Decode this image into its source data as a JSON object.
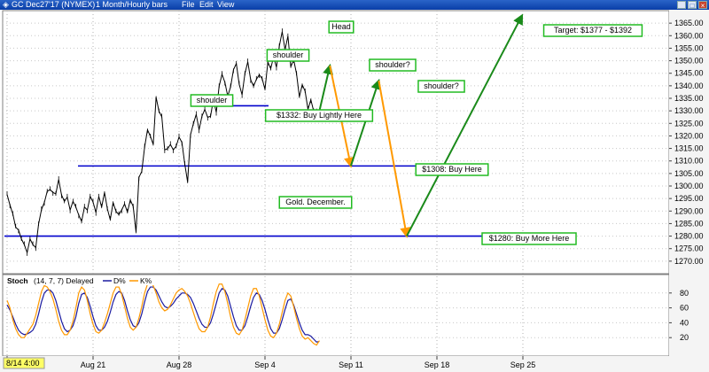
{
  "window": {
    "title": "GC Dec27'17 (NYMEX)",
    "interval": "1 Month/Hourly bars",
    "menu": [
      "File",
      "Edit",
      "View"
    ]
  },
  "chart_data": [
    {
      "type": "line",
      "name": "price",
      "x_ticks": [
        "8/14 4:00",
        "Aug 21",
        "Aug 28",
        "Sep 4",
        "Sep 11",
        "Sep 18",
        "Sep 25"
      ],
      "ylim": [
        1265,
        1370
      ],
      "y_ticks": [
        1270,
        1275,
        1280,
        1285,
        1290,
        1295,
        1300,
        1305,
        1310,
        1315,
        1320,
        1325,
        1330,
        1335,
        1340,
        1345,
        1350,
        1355,
        1360,
        1365
      ],
      "bars_per_week": 120,
      "series": [
        {
          "values": [
            1297,
            1292,
            1289,
            1284,
            1282,
            1279,
            1277,
            1273,
            1279,
            1277,
            1275,
            1285,
            1291,
            1293,
            1298,
            1299,
            1297,
            1297,
            1303,
            1296,
            1294,
            1296,
            1290,
            1294,
            1292,
            1288,
            1286,
            1292,
            1290,
            1296,
            1294,
            1289,
            1296,
            1292,
            1297,
            1291,
            1287,
            1293,
            1290,
            1289,
            1290,
            1293,
            1290,
            1294,
            1292,
            1282,
            1303,
            1306,
            1316,
            1322,
            1320,
            1317,
            1335,
            1330,
            1328,
            1314,
            1315,
            1317,
            1314,
            1316,
            1320,
            1317,
            1309,
            1302,
            1320,
            1325,
            1329,
            1322,
            1328,
            1331,
            1327,
            1328,
            1335,
            1329,
            1340,
            1345,
            1341,
            1336,
            1340,
            1346,
            1349,
            1341,
            1336,
            1345,
            1350,
            1342,
            1340,
            1343,
            1344,
            1343,
            1339,
            1349,
            1347,
            1352,
            1347,
            1356,
            1362,
            1354,
            1360,
            1348,
            1350,
            1345,
            1336,
            1340,
            1338,
            1331,
            1334,
            1330,
            1330,
            1330
          ]
        }
      ],
      "levels": [
        {
          "value": 1332,
          "label": "$1332: Buy Lightly Here"
        },
        {
          "value": 1308,
          "label": "$1308: Buy Here"
        },
        {
          "value": 1280,
          "label": "$1280: Buy More Here"
        }
      ],
      "annotations": [
        {
          "label": "Head"
        },
        {
          "label": "shoulder"
        },
        {
          "label": "shoulder"
        },
        {
          "label": "shoulder?"
        },
        {
          "label": "shoulder?"
        },
        {
          "label": "Gold. December."
        },
        {
          "label": "Target: $1377 - $1392"
        }
      ],
      "projection": {
        "up_color": "#1a8a1a",
        "down_color": "#ff9900",
        "points": [
          {
            "dx": 0,
            "y": 1330
          },
          {
            "dx": 6,
            "y": 1348
          },
          {
            "dx": 18,
            "y": 1308
          },
          {
            "dx": 34,
            "y": 1342
          },
          {
            "dx": 50,
            "y": 1280
          },
          {
            "dx": 116,
            "y": 1368
          }
        ]
      },
      "colors": {
        "price": "#000000",
        "level": "#0000cc",
        "annotation_border": "#22bb22"
      }
    },
    {
      "type": "line",
      "name": "stochastic",
      "title": "Stoch",
      "params": "(14, 7, 7) Delayed",
      "legend": [
        "D%",
        "K%"
      ],
      "ylim": [
        0,
        100
      ],
      "y_ticks": [
        20,
        40,
        60,
        80
      ],
      "series": [
        {
          "name": "D%",
          "color": "#1a1aa0",
          "values": [
            64,
            57,
            48,
            38,
            30,
            26,
            24,
            25,
            27,
            30,
            38,
            52,
            68,
            80,
            84,
            84,
            80,
            70,
            56,
            42,
            32,
            28,
            30,
            36,
            48,
            66,
            78,
            80,
            74,
            62,
            48,
            36,
            30,
            30,
            34,
            42,
            54,
            68,
            78,
            82,
            80,
            70,
            56,
            44,
            36,
            34,
            40,
            52,
            68,
            82,
            88,
            88,
            84,
            76,
            68,
            62,
            60,
            62,
            66,
            72,
            76,
            80,
            80,
            78,
            74,
            66,
            56,
            46,
            38,
            34,
            34,
            40,
            52,
            66,
            80,
            86,
            84,
            76,
            62,
            48,
            36,
            30,
            30,
            36,
            48,
            62,
            74,
            80,
            78,
            70,
            58,
            44,
            32,
            26,
            26,
            32,
            44,
            58,
            70,
            72,
            64,
            52,
            40,
            30,
            24,
            24,
            22,
            18,
            14,
            15
          ]
        },
        {
          "name": "K%",
          "color": "#ff9900",
          "values": [
            70,
            60,
            44,
            32,
            24,
            20,
            20,
            26,
            32,
            38,
            50,
            66,
            82,
            90,
            88,
            82,
            72,
            58,
            42,
            30,
            24,
            24,
            30,
            42,
            60,
            80,
            88,
            84,
            70,
            52,
            38,
            28,
            26,
            30,
            40,
            52,
            66,
            80,
            88,
            88,
            78,
            62,
            46,
            34,
            30,
            34,
            46,
            62,
            80,
            92,
            94,
            90,
            80,
            68,
            60,
            56,
            58,
            64,
            72,
            80,
            84,
            86,
            82,
            76,
            66,
            54,
            42,
            32,
            28,
            28,
            34,
            48,
            66,
            82,
            92,
            92,
            82,
            66,
            48,
            34,
            26,
            24,
            30,
            44,
            60,
            76,
            86,
            86,
            76,
            60,
            44,
            30,
            22,
            20,
            26,
            38,
            54,
            70,
            80,
            76,
            62,
            46,
            32,
            22,
            18,
            20,
            16,
            12,
            10,
            16
          ]
        }
      ]
    }
  ]
}
